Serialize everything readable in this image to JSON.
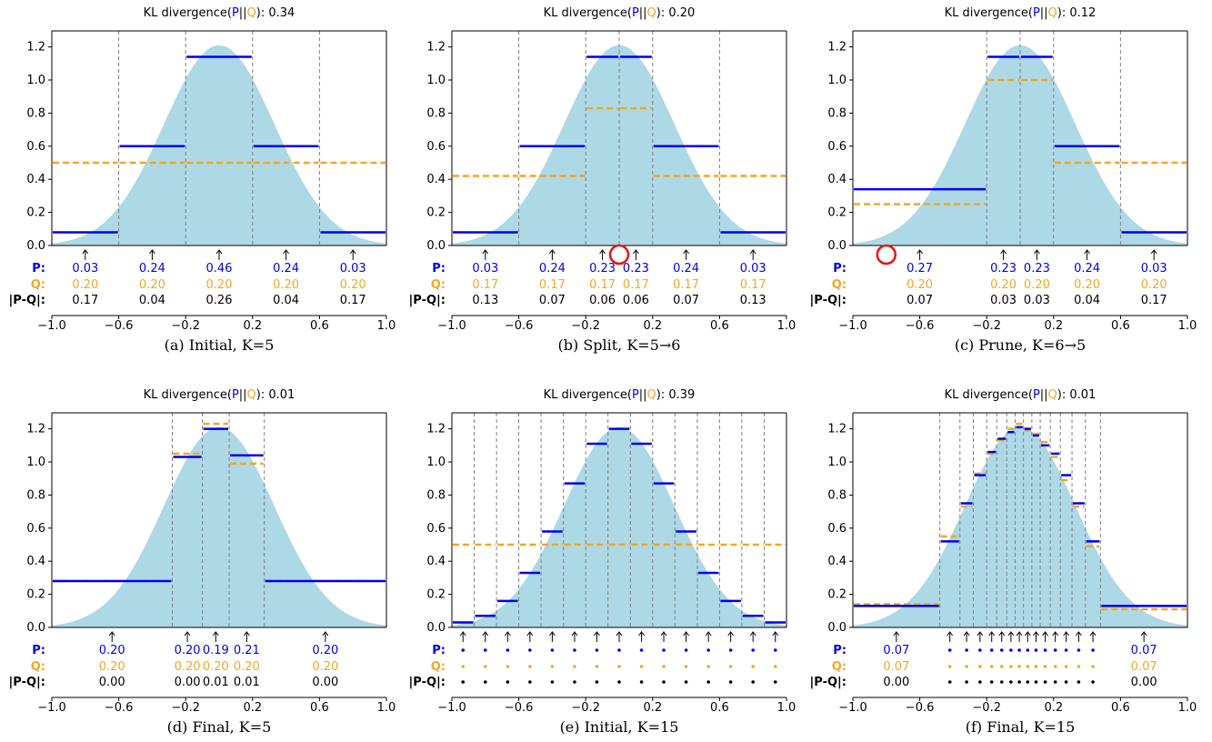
{
  "colors": {
    "P": "#0000ee",
    "Q": "#f5a623",
    "fill": "#add8e6",
    "red": "#ee1111",
    "text": "#000000",
    "grid": "#808080"
  },
  "chart_data": [
    {
      "type": "step",
      "title": "KL divergence(P||Q): 0.34",
      "caption": "(a) Initial, K=5",
      "kl": "0.34",
      "xlim": [
        -1.0,
        1.0
      ],
      "ylim": [
        0,
        1.3
      ],
      "xticks": [
        "-1.0",
        "-0.6",
        "-0.2",
        "0.2",
        "0.6",
        "1.0"
      ],
      "yticks": [
        "0.0",
        "0.2",
        "0.4",
        "0.6",
        "0.8",
        "1.0",
        "1.2"
      ],
      "edges": [
        -1.0,
        -0.6,
        -0.2,
        0.2,
        0.6,
        1.0
      ],
      "p_density": [
        0.08,
        0.6,
        1.14,
        0.6,
        0.08
      ],
      "q_density": [
        0.5,
        0.5,
        0.5,
        0.5,
        0.5
      ],
      "P": [
        "0.03",
        "0.24",
        "0.46",
        "0.24",
        "0.03"
      ],
      "Q": [
        "0.20",
        "0.20",
        "0.20",
        "0.20",
        "0.20"
      ],
      "absdiff": [
        "0.17",
        "0.04",
        "0.26",
        "0.04",
        "0.17"
      ],
      "circle_x": null
    },
    {
      "type": "step",
      "title": "KL divergence(P||Q): 0.20",
      "caption": "(b) Split, K=5→6",
      "kl": "0.20",
      "xlim": [
        -1.0,
        1.0
      ],
      "ylim": [
        0,
        1.3
      ],
      "xticks": [
        "-1.0",
        "-0.6",
        "-0.2",
        "0.2",
        "0.6",
        "1.0"
      ],
      "yticks": [
        "0.0",
        "0.2",
        "0.4",
        "0.6",
        "0.8",
        "1.0",
        "1.2"
      ],
      "edges": [
        -1.0,
        -0.6,
        -0.2,
        0.0,
        0.2,
        0.6,
        1.0
      ],
      "p_density": [
        0.08,
        0.6,
        1.14,
        1.14,
        0.6,
        0.08
      ],
      "q_density": [
        0.42,
        0.42,
        0.83,
        0.83,
        0.42,
        0.42
      ],
      "P": [
        "0.03",
        "0.24",
        "0.23",
        "0.23",
        "0.24",
        "0.03"
      ],
      "Q": [
        "0.17",
        "0.17",
        "0.17",
        "0.17",
        "0.17",
        "0.17"
      ],
      "absdiff": [
        "0.13",
        "0.07",
        "0.06",
        "0.06",
        "0.07",
        "0.13"
      ],
      "circle_x": 0.0
    },
    {
      "type": "step",
      "title": "KL divergence(P||Q): 0.12",
      "caption": "(c) Prune, K=6→5",
      "kl": "0.12",
      "xlim": [
        -1.0,
        1.0
      ],
      "ylim": [
        0,
        1.3
      ],
      "xticks": [
        "-1.0",
        "-0.6",
        "-0.2",
        "0.2",
        "0.6",
        "1.0"
      ],
      "yticks": [
        "0.0",
        "0.2",
        "0.4",
        "0.6",
        "0.8",
        "1.0",
        "1.2"
      ],
      "edges": [
        -1.0,
        -0.2,
        0.0,
        0.2,
        0.6,
        1.0
      ],
      "p_density": [
        0.34,
        1.14,
        1.14,
        0.6,
        0.08
      ],
      "q_density": [
        0.25,
        1.0,
        1.0,
        0.5,
        0.5
      ],
      "P": [
        "0.27",
        "0.23",
        "0.23",
        "0.24",
        "0.03"
      ],
      "Q": [
        "0.20",
        "0.20",
        "0.20",
        "0.20",
        "0.20"
      ],
      "absdiff": [
        "0.07",
        "0.03",
        "0.03",
        "0.04",
        "0.17"
      ],
      "circle_x": -0.8
    },
    {
      "type": "step",
      "title": "KL divergence(P||Q): 0.01",
      "caption": "(d) Final, K=5",
      "kl": "0.01",
      "xlim": [
        -1.0,
        1.0
      ],
      "ylim": [
        0,
        1.3
      ],
      "xticks": [
        "-1.0",
        "-0.6",
        "-0.2",
        "0.2",
        "0.6",
        "1.0"
      ],
      "yticks": [
        "0.0",
        "0.2",
        "0.4",
        "0.6",
        "0.8",
        "1.0",
        "1.2"
      ],
      "edges": [
        -1.0,
        -0.28,
        -0.1,
        0.06,
        0.27,
        1.0
      ],
      "p_density": [
        0.28,
        1.03,
        1.2,
        1.04,
        0.28
      ],
      "q_density": [
        0.28,
        1.05,
        1.23,
        0.99,
        0.28
      ],
      "P": [
        "0.20",
        "0.20",
        "0.19",
        "0.21",
        "0.20"
      ],
      "Q": [
        "0.20",
        "0.20",
        "0.20",
        "0.20",
        "0.20"
      ],
      "absdiff": [
        "0.00",
        "0.00",
        "0.01",
        "0.01",
        "0.00"
      ],
      "circle_x": null
    },
    {
      "type": "step",
      "title": "KL divergence(P||Q): 0.39",
      "caption": "(e) Initial, K=15",
      "kl": "0.39",
      "xlim": [
        -1.0,
        1.0
      ],
      "ylim": [
        0,
        1.3
      ],
      "xticks": [
        "-1.0",
        "-0.6",
        "-0.2",
        "0.2",
        "0.6",
        "1.0"
      ],
      "yticks": [
        "0.0",
        "0.2",
        "0.4",
        "0.6",
        "0.8",
        "1.0",
        "1.2"
      ],
      "edges": [
        -1.0,
        -0.867,
        -0.733,
        -0.6,
        -0.467,
        -0.333,
        -0.2,
        -0.067,
        0.067,
        0.2,
        0.333,
        0.467,
        0.6,
        0.733,
        0.867,
        1.0
      ],
      "p_density": [
        0.03,
        0.07,
        0.16,
        0.33,
        0.58,
        0.87,
        1.11,
        1.2,
        1.11,
        0.87,
        0.58,
        0.33,
        0.16,
        0.07,
        0.03
      ],
      "q_density": [
        0.5,
        0.5,
        0.5,
        0.5,
        0.5,
        0.5,
        0.5,
        0.5,
        0.5,
        0.5,
        0.5,
        0.5,
        0.5,
        0.5,
        0.5
      ],
      "P": [],
      "Q": [],
      "absdiff": [],
      "dots": 15,
      "circle_x": null
    },
    {
      "type": "step",
      "title": "KL divergence(P||Q): 0.01",
      "caption": "(f) Final, K=15",
      "kl": "0.01",
      "xlim": [
        -1.0,
        1.0
      ],
      "ylim": [
        0,
        1.3
      ],
      "xticks": [
        "-1.0",
        "-0.6",
        "-0.2",
        "0.2",
        "0.6",
        "1.0"
      ],
      "yticks": [
        "0.0",
        "0.2",
        "0.4",
        "0.6",
        "0.8",
        "1.0",
        "1.2"
      ],
      "edges": [
        -1.0,
        -0.48,
        -0.36,
        -0.28,
        -0.2,
        -0.14,
        -0.08,
        -0.03,
        0.02,
        0.07,
        0.12,
        0.18,
        0.24,
        0.31,
        0.39,
        0.48,
        1.0
      ],
      "p_density": [
        0.13,
        0.52,
        0.75,
        0.92,
        1.06,
        1.14,
        1.18,
        1.21,
        1.2,
        1.16,
        1.1,
        1.05,
        0.92,
        0.75,
        0.52,
        0.13
      ],
      "q_density": [
        0.14,
        0.55,
        0.73,
        0.93,
        1.05,
        1.13,
        1.2,
        1.23,
        1.19,
        1.17,
        1.12,
        1.03,
        0.89,
        0.73,
        0.49,
        0.11
      ],
      "P": [
        "0.07",
        "0.07"
      ],
      "Q": [
        "0.07",
        "0.07"
      ],
      "absdiff": [
        "0.00",
        "0.00"
      ],
      "dots": 14,
      "circle_x": null
    }
  ],
  "row_labels": {
    "P": "P:",
    "Q": "Q:",
    "absdiff": "|P-Q|:"
  },
  "title_parts": {
    "prefix": "KL divergence(",
    "P": "P",
    "sep": "||",
    "Q": "Q",
    "suffix": "): "
  }
}
